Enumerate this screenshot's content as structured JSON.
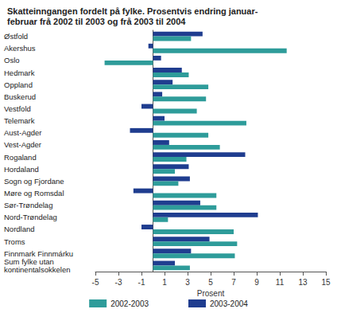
{
  "chart_data": {
    "type": "bar",
    "orientation": "horizontal",
    "title": "Skatteinngangen fordelt på fylke. Prosentvis endring januar-\nfebruar frå 2002 til 2003 og frå 2003 til 2004",
    "x_label": "Prosent",
    "categories": [
      "Østfold",
      "Akershus",
      "Oslo",
      "Hedmark",
      "Oppland",
      "Buskerud",
      "Vestfold",
      "Telemark",
      "Aust-Agder",
      "Vest-Agder",
      "Rogaland",
      "Hordaland",
      "Sogn og Fjordane",
      "Møre og Romsdal",
      "Sør-Trøndelag",
      "Nord-Trøndelag",
      "Nordland",
      "Troms",
      "Finnmark Finnmárku",
      "Sum fylke utan\nkontinentalsokkelen"
    ],
    "series": [
      {
        "name": "2002-2003",
        "color": "#2e9c9a",
        "values": [
          3.3,
          11.6,
          -4.2,
          3.1,
          4.8,
          4.6,
          3.8,
          8.1,
          4.8,
          5.8,
          2.9,
          1.9,
          2.2,
          5.5,
          5.5,
          1.3,
          7.0,
          7.3,
          7.1,
          3.2
        ]
      },
      {
        "name": "2003-2004",
        "color": "#1f3d8f",
        "values": [
          4.3,
          -0.4,
          0.7,
          2.5,
          1.7,
          0.8,
          -1.0,
          1.0,
          -2.0,
          1.4,
          8.0,
          3.1,
          3.2,
          -1.7,
          4.1,
          9.1,
          -1.0,
          4.9,
          3.3,
          1.9
        ]
      }
    ],
    "xlim": [
      -5,
      15
    ],
    "xticks": [
      -5,
      -3,
      -1,
      1,
      3,
      5,
      7,
      9,
      11,
      13,
      15
    ],
    "grid": false,
    "legend": "bottom"
  }
}
